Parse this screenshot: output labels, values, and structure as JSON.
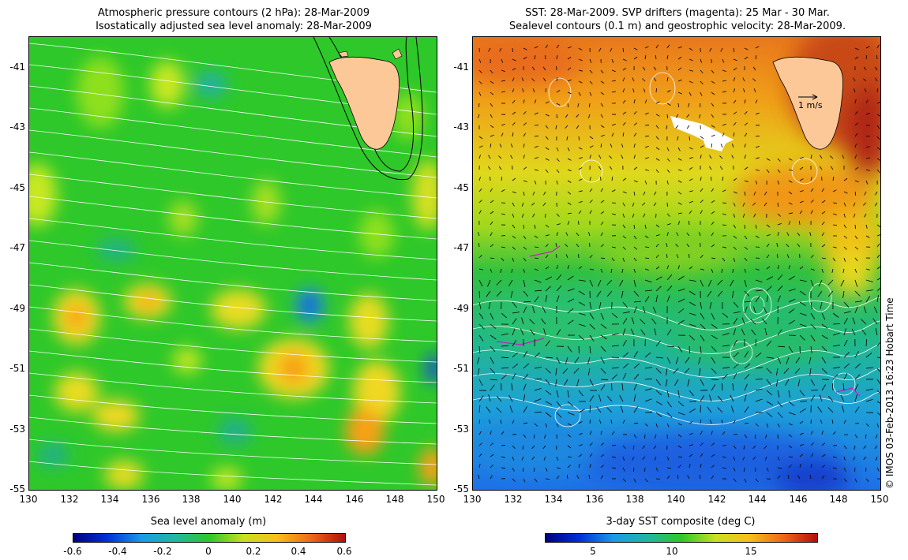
{
  "left_panel": {
    "title_line1": "Atmospheric pressure contours (2 hPa): 28-Mar-2009",
    "title_line2": "Isostatically adjusted sea level anomaly: 28-Mar-2009",
    "colorbar_title": "Sea level anomaly (m)",
    "colorbar_ticks": [
      "-0.6",
      "-0.4",
      "-0.2",
      "0",
      "0.2",
      "0.4",
      "0.6"
    ]
  },
  "right_panel": {
    "title_line1": "SST: 28-Mar-2009. SVP drifters (magenta): 25 Mar - 30 Mar.",
    "title_line2": "Sealevel contours (0.1 m) and geostrophic velocity: 28-Mar-2009.",
    "colorbar_title": "3-day SST composite (deg C)",
    "colorbar_ticks": [
      "5",
      "10",
      "15"
    ],
    "scale_arrow_label": "1 m/s"
  },
  "axes": {
    "lat_ticks": [
      "-41",
      "-43",
      "-45",
      "-47",
      "-49",
      "-51",
      "-53",
      "-55"
    ],
    "lon_ticks": [
      "130",
      "132",
      "134",
      "136",
      "138",
      "140",
      "142",
      "144",
      "146",
      "148",
      "150"
    ]
  },
  "credit": "© IMOS 03-Feb-2013 16:23 Hobart Time",
  "colors": {
    "land": "#fcc898",
    "sla_background": "#2ec82a",
    "sst_warm": "#e0641c",
    "sst_cool": "#1e7ae8"
  }
}
